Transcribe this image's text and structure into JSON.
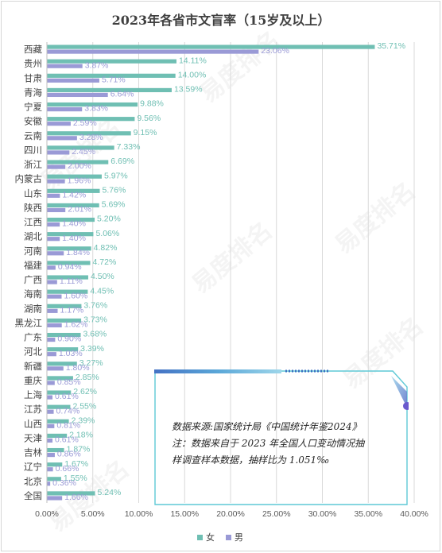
{
  "chart_data": {
    "type": "bar",
    "orientation": "horizontal",
    "title": "2023年各省市文盲率（15岁及以上）",
    "categories": [
      "西藏",
      "贵州",
      "甘肃",
      "青海",
      "宁夏",
      "安徽",
      "云南",
      "四川",
      "浙江",
      "内蒙古",
      "山东",
      "陕西",
      "江西",
      "湖北",
      "河南",
      "福建",
      "广西",
      "海南",
      "湖南",
      "黑龙江",
      "广东",
      "河北",
      "新疆",
      "重庆",
      "上海",
      "江苏",
      "山西",
      "天津",
      "吉林",
      "辽宁",
      "北京",
      "全国"
    ],
    "series": [
      {
        "name": "女",
        "color": "#6fbfb3",
        "values": [
          35.71,
          14.11,
          14.0,
          13.59,
          9.88,
          9.56,
          9.15,
          7.33,
          6.69,
          5.97,
          5.76,
          5.69,
          5.2,
          5.06,
          4.82,
          4.72,
          4.5,
          4.45,
          3.76,
          3.73,
          3.68,
          3.39,
          3.27,
          2.85,
          2.62,
          2.55,
          2.39,
          2.18,
          1.87,
          1.67,
          1.55,
          5.24
        ]
      },
      {
        "name": "男",
        "color": "#9a9ad6",
        "values": [
          23.06,
          3.87,
          5.71,
          6.64,
          3.83,
          2.59,
          3.28,
          2.45,
          2.0,
          1.96,
          1.42,
          2.01,
          1.4,
          1.4,
          1.84,
          0.94,
          1.11,
          1.6,
          1.17,
          1.62,
          0.9,
          1.03,
          1.8,
          0.85,
          0.61,
          0.74,
          0.81,
          0.61,
          0.86,
          0.66,
          0.36,
          1.66
        ]
      }
    ],
    "xlim": [
      0,
      40
    ],
    "xticks": [
      "0.00%",
      "5.00%",
      "10.00%",
      "15.00%",
      "20.00%",
      "25.00%",
      "30.00%",
      "35.00%",
      "40.00%"
    ],
    "value_suffix": "%",
    "grid": true,
    "legend": "bottom"
  },
  "note": {
    "line1": "数据来源:国家统计局《中国统计年鉴2024》",
    "line2": "注：数据来自于 2023 年全国人口变动情况抽",
    "line3": "样调查样本数据，抽样比为 1.051‰"
  },
  "legend": {
    "female": "女",
    "male": "男"
  },
  "watermark": {
    "text": "易度排名",
    "sub": "EDU Ranking.cn"
  }
}
